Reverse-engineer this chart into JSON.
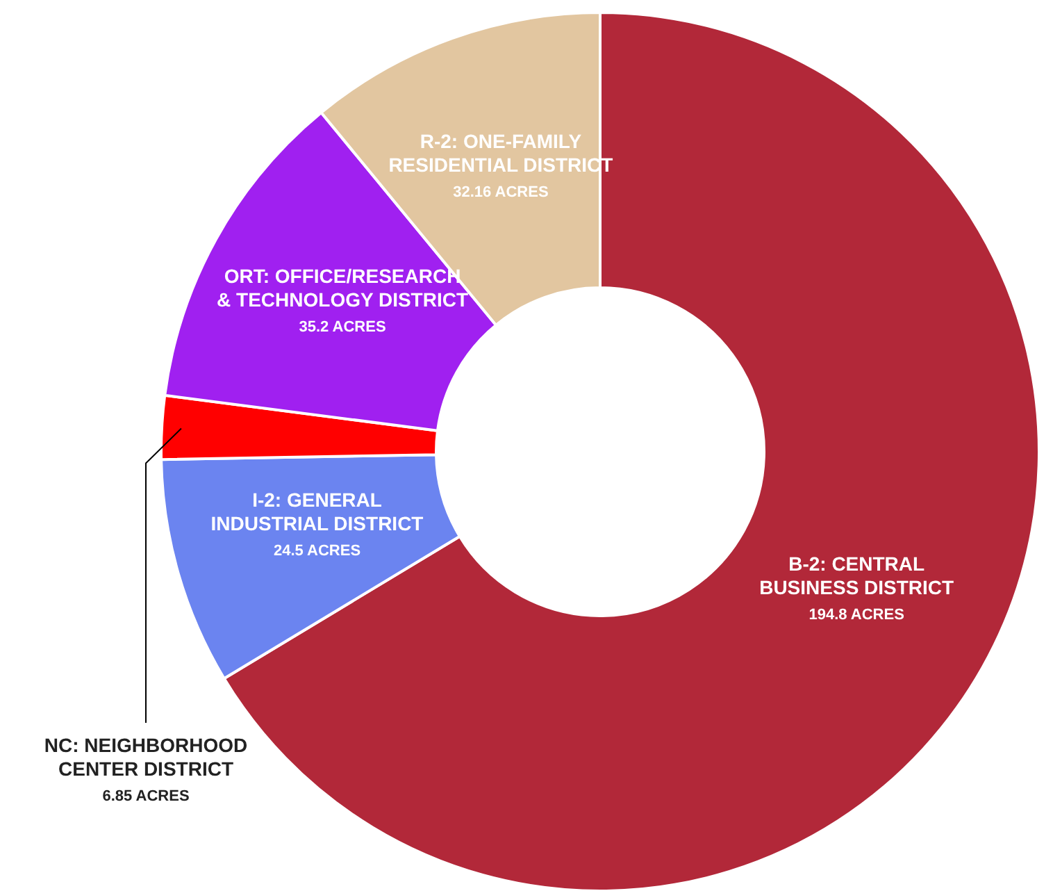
{
  "chart_data": {
    "type": "donut",
    "categories": [
      "B-2:  CENTRAL BUSINESS DISTRICT",
      "I-2:  GENERAL INDUSTRIAL DISTRICT",
      "NC:  NEIGHBORHOOD CENTER DISTRICT",
      "ORT:  OFFICE/RESEARCH & TECHNOLOGY DISTRICT",
      "R-2:  ONE-FAMILY RESIDENTIAL DISTRICT"
    ],
    "values": [
      194.8,
      24.5,
      6.85,
      35.2,
      32.16
    ],
    "colors": [
      "#b22839",
      "#6b84f0",
      "#ff0000",
      "#a020f0",
      "#e2c6a0"
    ],
    "value_labels": [
      "194.8 ACRES",
      "24.5 ACRES",
      "6.85 ACRES",
      "35.2 ACRES",
      "32.16 ACRES"
    ]
  }
}
